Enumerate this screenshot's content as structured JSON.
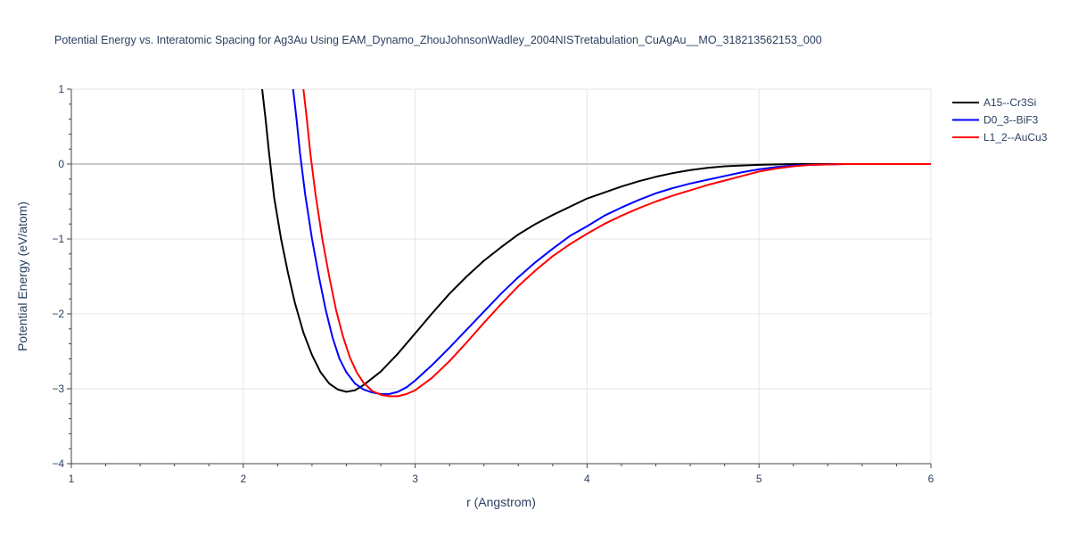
{
  "chart_data": {
    "type": "line",
    "title": "Potential Energy vs. Interatomic Spacing for Ag3Au Using EAM_Dynamo_ZhouJohnsonWadley_2004NISTretabulation_CuAgAu__MO_318213562153_000",
    "xlabel": "r (Angstrom)",
    "ylabel": "Potential Energy (eV/atom)",
    "xlim": [
      1,
      6
    ],
    "ylim": [
      -4,
      1
    ],
    "x_ticks": [
      1,
      2,
      3,
      4,
      5,
      6
    ],
    "x_tick_labels": [
      "1",
      "2",
      "3",
      "4",
      "5",
      "6"
    ],
    "y_ticks": [
      -4,
      -3,
      -2,
      -1,
      0,
      1
    ],
    "y_tick_labels": [
      "−4",
      "−3",
      "−2",
      "−1",
      "0",
      "1"
    ],
    "grid": true,
    "legend_position": "top-right",
    "series": [
      {
        "name": "A15--Cr3Si",
        "color": "#000000",
        "points": [
          [
            2.11,
            1.0
          ],
          [
            2.13,
            0.6
          ],
          [
            2.15,
            0.15
          ],
          [
            2.18,
            -0.45
          ],
          [
            2.22,
            -1.0
          ],
          [
            2.26,
            -1.45
          ],
          [
            2.3,
            -1.85
          ],
          [
            2.35,
            -2.25
          ],
          [
            2.4,
            -2.55
          ],
          [
            2.45,
            -2.78
          ],
          [
            2.5,
            -2.93
          ],
          [
            2.55,
            -3.01
          ],
          [
            2.6,
            -3.04
          ],
          [
            2.65,
            -3.02
          ],
          [
            2.7,
            -2.95
          ],
          [
            2.8,
            -2.77
          ],
          [
            2.9,
            -2.53
          ],
          [
            3.0,
            -2.26
          ],
          [
            3.1,
            -1.99
          ],
          [
            3.2,
            -1.73
          ],
          [
            3.3,
            -1.5
          ],
          [
            3.4,
            -1.29
          ],
          [
            3.5,
            -1.11
          ],
          [
            3.6,
            -0.94
          ],
          [
            3.7,
            -0.8
          ],
          [
            3.8,
            -0.68
          ],
          [
            3.9,
            -0.57
          ],
          [
            4.0,
            -0.46
          ],
          [
            4.1,
            -0.38
          ],
          [
            4.2,
            -0.3
          ],
          [
            4.3,
            -0.23
          ],
          [
            4.4,
            -0.17
          ],
          [
            4.5,
            -0.12
          ],
          [
            4.6,
            -0.08
          ],
          [
            4.7,
            -0.05
          ],
          [
            4.8,
            -0.03
          ],
          [
            4.9,
            -0.02
          ],
          [
            5.0,
            -0.01
          ],
          [
            5.2,
            0.0
          ],
          [
            5.5,
            0.0
          ],
          [
            6.0,
            0.0
          ]
        ]
      },
      {
        "name": "D0_3--BiF3",
        "color": "#0000ff",
        "points": [
          [
            2.29,
            1.0
          ],
          [
            2.31,
            0.6
          ],
          [
            2.33,
            0.15
          ],
          [
            2.36,
            -0.4
          ],
          [
            2.4,
            -1.0
          ],
          [
            2.44,
            -1.5
          ],
          [
            2.48,
            -1.95
          ],
          [
            2.52,
            -2.32
          ],
          [
            2.56,
            -2.6
          ],
          [
            2.6,
            -2.78
          ],
          [
            2.65,
            -2.93
          ],
          [
            2.7,
            -3.01
          ],
          [
            2.75,
            -3.05
          ],
          [
            2.8,
            -3.07
          ],
          [
            2.85,
            -3.07
          ],
          [
            2.9,
            -3.04
          ],
          [
            2.95,
            -2.98
          ],
          [
            3.0,
            -2.89
          ],
          [
            3.1,
            -2.68
          ],
          [
            3.2,
            -2.45
          ],
          [
            3.3,
            -2.21
          ],
          [
            3.4,
            -1.97
          ],
          [
            3.5,
            -1.73
          ],
          [
            3.6,
            -1.51
          ],
          [
            3.7,
            -1.31
          ],
          [
            3.8,
            -1.13
          ],
          [
            3.9,
            -0.96
          ],
          [
            4.0,
            -0.83
          ],
          [
            4.1,
            -0.69
          ],
          [
            4.2,
            -0.58
          ],
          [
            4.3,
            -0.48
          ],
          [
            4.4,
            -0.39
          ],
          [
            4.5,
            -0.32
          ],
          [
            4.6,
            -0.26
          ],
          [
            4.7,
            -0.21
          ],
          [
            4.8,
            -0.16
          ],
          [
            4.9,
            -0.11
          ],
          [
            5.0,
            -0.07
          ],
          [
            5.1,
            -0.04
          ],
          [
            5.2,
            -0.02
          ],
          [
            5.3,
            -0.01
          ],
          [
            5.5,
            0.0
          ],
          [
            6.0,
            0.0
          ]
        ]
      },
      {
        "name": "L1_2--AuCu3",
        "color": "#ff0000",
        "points": [
          [
            2.35,
            1.0
          ],
          [
            2.37,
            0.6
          ],
          [
            2.39,
            0.15
          ],
          [
            2.42,
            -0.4
          ],
          [
            2.46,
            -1.0
          ],
          [
            2.5,
            -1.5
          ],
          [
            2.54,
            -1.95
          ],
          [
            2.58,
            -2.3
          ],
          [
            2.62,
            -2.58
          ],
          [
            2.66,
            -2.78
          ],
          [
            2.7,
            -2.92
          ],
          [
            2.75,
            -3.03
          ],
          [
            2.8,
            -3.08
          ],
          [
            2.85,
            -3.1
          ],
          [
            2.9,
            -3.1
          ],
          [
            2.95,
            -3.07
          ],
          [
            3.0,
            -3.02
          ],
          [
            3.1,
            -2.85
          ],
          [
            3.2,
            -2.63
          ],
          [
            3.3,
            -2.38
          ],
          [
            3.4,
            -2.12
          ],
          [
            3.5,
            -1.87
          ],
          [
            3.6,
            -1.63
          ],
          [
            3.7,
            -1.42
          ],
          [
            3.8,
            -1.23
          ],
          [
            3.9,
            -1.07
          ],
          [
            4.0,
            -0.93
          ],
          [
            4.1,
            -0.8
          ],
          [
            4.2,
            -0.69
          ],
          [
            4.3,
            -0.59
          ],
          [
            4.4,
            -0.5
          ],
          [
            4.5,
            -0.42
          ],
          [
            4.6,
            -0.35
          ],
          [
            4.7,
            -0.28
          ],
          [
            4.8,
            -0.22
          ],
          [
            4.9,
            -0.16
          ],
          [
            5.0,
            -0.1
          ],
          [
            5.1,
            -0.06
          ],
          [
            5.2,
            -0.03
          ],
          [
            5.3,
            -0.01
          ],
          [
            5.5,
            0.0
          ],
          [
            6.0,
            0.0
          ]
        ]
      }
    ]
  }
}
